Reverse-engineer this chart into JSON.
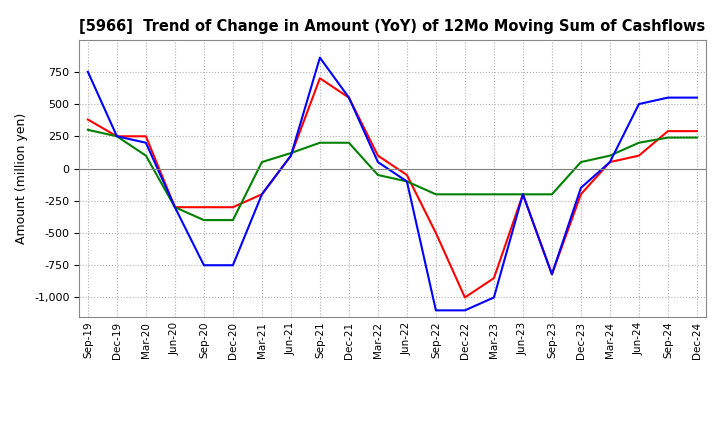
{
  "title": "[5966]  Trend of Change in Amount (YoY) of 12Mo Moving Sum of Cashflows",
  "ylabel": "Amount (million yen)",
  "x_labels": [
    "Sep-19",
    "Dec-19",
    "Mar-20",
    "Jun-20",
    "Sep-20",
    "Dec-20",
    "Mar-21",
    "Jun-21",
    "Sep-21",
    "Dec-21",
    "Mar-22",
    "Jun-22",
    "Sep-22",
    "Dec-22",
    "Mar-23",
    "Jun-23",
    "Sep-23",
    "Dec-23",
    "Mar-24",
    "Jun-24",
    "Sep-24",
    "Dec-24"
  ],
  "operating": [
    380,
    250,
    250,
    -300,
    -300,
    -300,
    -200,
    100,
    700,
    550,
    100,
    -50,
    -500,
    -1000,
    -850,
    -200,
    -820,
    -200,
    50,
    100,
    290,
    290
  ],
  "investing": [
    300,
    250,
    100,
    -300,
    -400,
    -400,
    50,
    120,
    200,
    200,
    -50,
    -100,
    -200,
    -200,
    -200,
    -200,
    -200,
    50,
    100,
    200,
    240,
    240
  ],
  "free": [
    750,
    250,
    200,
    -300,
    -750,
    -750,
    -200,
    100,
    860,
    550,
    50,
    -100,
    -1100,
    -1100,
    -1000,
    -200,
    -820,
    -150,
    50,
    500,
    550,
    550
  ],
  "operating_color": "#ff0000",
  "investing_color": "#008000",
  "free_color": "#0000ff",
  "ylim": [
    -1150,
    1000
  ],
  "yticks": [
    -1000,
    -750,
    -500,
    -250,
    0,
    250,
    500,
    750
  ],
  "background_color": "#ffffff",
  "grid_color": "#b0b0b0"
}
